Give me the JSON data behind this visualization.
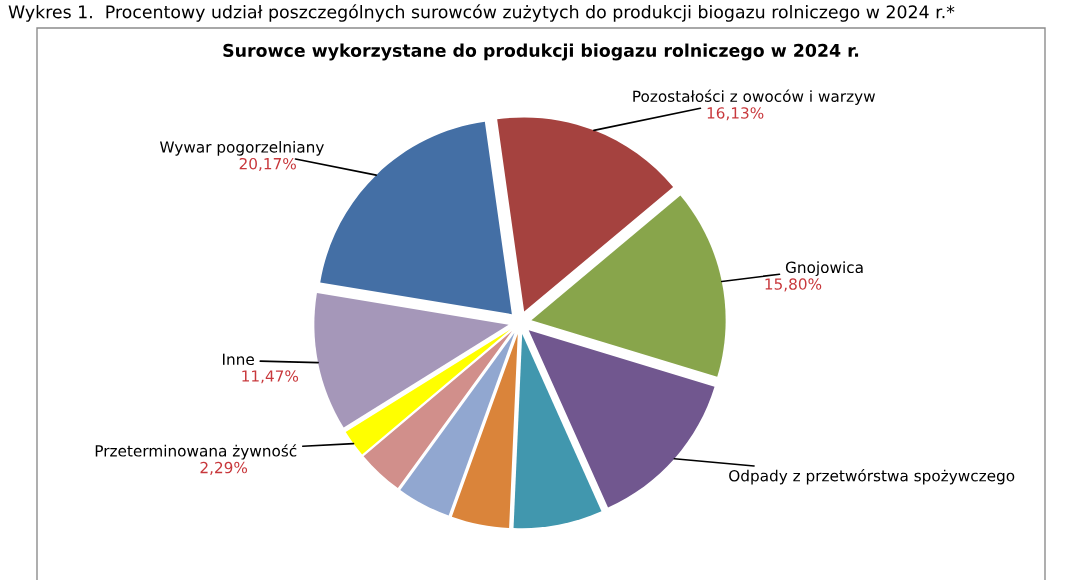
{
  "chart_data": {
    "type": "pie",
    "title": "Wykres 1.  Procentowy udział poszczególnych surowców zużytych do produkcji biogazu rolniczego w 2024 r.*",
    "subtitle": "Surowce wykorzystane do produkcji biogazu rolniczego w 2024 r.",
    "categories": [
      "Pozostałości z owoców i warzyw",
      "Gnojowica",
      "Odpady z przetwórstwa spożywczego",
      null,
      null,
      null,
      null,
      "Przeterminowana żywność",
      "Inne",
      "Wywar pogorzelniany"
    ],
    "values": [
      16.13,
      15.8,
      13.6,
      7.4,
      4.8,
      4.5,
      3.84,
      2.29,
      11.47,
      20.17
    ],
    "colors": [
      "#a5423f",
      "#88a54b",
      "#71578f",
      "#4197ae",
      "#da843a",
      "#91a7d0",
      "#d18f8b",
      "#ffff00",
      "#a597b9",
      "#446fa5"
    ],
    "value_labels": [
      "16,13%",
      "15,80%",
      null,
      null,
      null,
      null,
      null,
      "2,29%",
      "11,47%",
      "20,17%"
    ]
  }
}
